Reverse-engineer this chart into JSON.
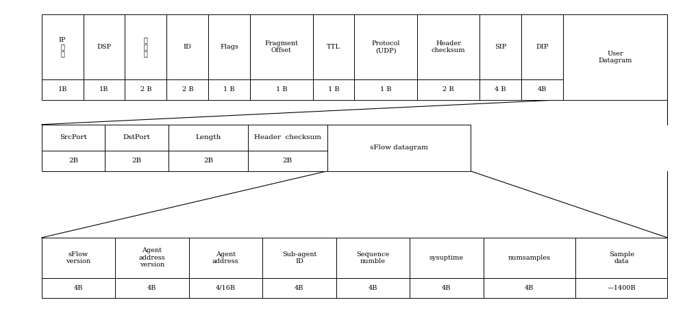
{
  "bg_color": "#ffffff",
  "text_color": "#000000",
  "row1": {
    "headers": [
      "IP\n版\n本",
      "DSP",
      "总\n长\n度",
      "ID",
      "Flags",
      "Fragment\nOffset",
      "TTL",
      "Protocol\n(UDP)",
      "Header\nchecksum",
      "SIP",
      "DIP",
      "User\nDatagram"
    ],
    "values": [
      "1B",
      "1B",
      "2 B",
      "2 B",
      "1 B",
      "1 B",
      "1 B",
      "1 B",
      "2 B",
      "4 B",
      "4B",
      ""
    ],
    "widths": [
      1.0,
      1.0,
      1.0,
      1.0,
      1.0,
      1.5,
      1.0,
      1.5,
      1.5,
      1.0,
      1.0,
      2.5
    ]
  },
  "row2": {
    "headers": [
      "SrcPort",
      "DstPort",
      "Length",
      "Header  checksum",
      "sFlow datagram"
    ],
    "values": [
      "2B",
      "2B",
      "2B",
      "2B",
      ""
    ],
    "widths": [
      2.0,
      2.0,
      2.5,
      2.5,
      4.5
    ],
    "merged_last": true
  },
  "row3": {
    "headers": [
      "sFlow\nversion",
      "Agent\naddress\nversion",
      "Agent\naddress",
      "Sub-agent\nID",
      "Sequence\nnumble",
      "sysuptime",
      "numsamples",
      "Sample\ndata"
    ],
    "values": [
      "4B",
      "4B",
      "4/16B",
      "4B",
      "4B",
      "4B",
      "4B",
      "—1400B"
    ],
    "widths": [
      2.0,
      2.0,
      2.0,
      2.0,
      2.0,
      2.0,
      2.5,
      2.5
    ]
  },
  "fig_width": 10.0,
  "fig_height": 4.54,
  "dpi": 100
}
